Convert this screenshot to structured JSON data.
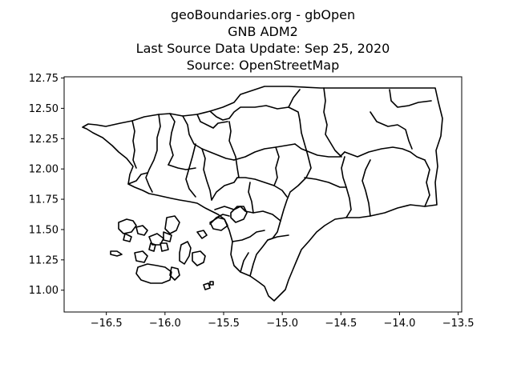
{
  "figure": {
    "title_lines": [
      "geoBoundaries.org - gbOpen",
      "GNB ADM2",
      "Last Source Data Update: Sep 25, 2020",
      "Source: OpenStreetMap"
    ]
  },
  "chart_data": {
    "type": "map",
    "grid": false,
    "xlim": [
      -16.86,
      -13.47
    ],
    "ylim": [
      10.82,
      12.76
    ],
    "x_ticks": [
      -16.5,
      -16.0,
      -15.5,
      -15.0,
      -14.5,
      -14.0,
      -13.5
    ],
    "x_tick_labels": [
      "−16.5",
      "−16.0",
      "−15.5",
      "−15.0",
      "−14.5",
      "−14.0",
      "−13.5"
    ],
    "y_ticks": [
      11.0,
      11.25,
      11.5,
      11.75,
      12.0,
      12.25,
      12.5,
      12.75
    ],
    "y_tick_labels": [
      "11.00",
      "11.25",
      "11.50",
      "11.75",
      "12.00",
      "12.25",
      "12.50",
      "12.75"
    ]
  }
}
